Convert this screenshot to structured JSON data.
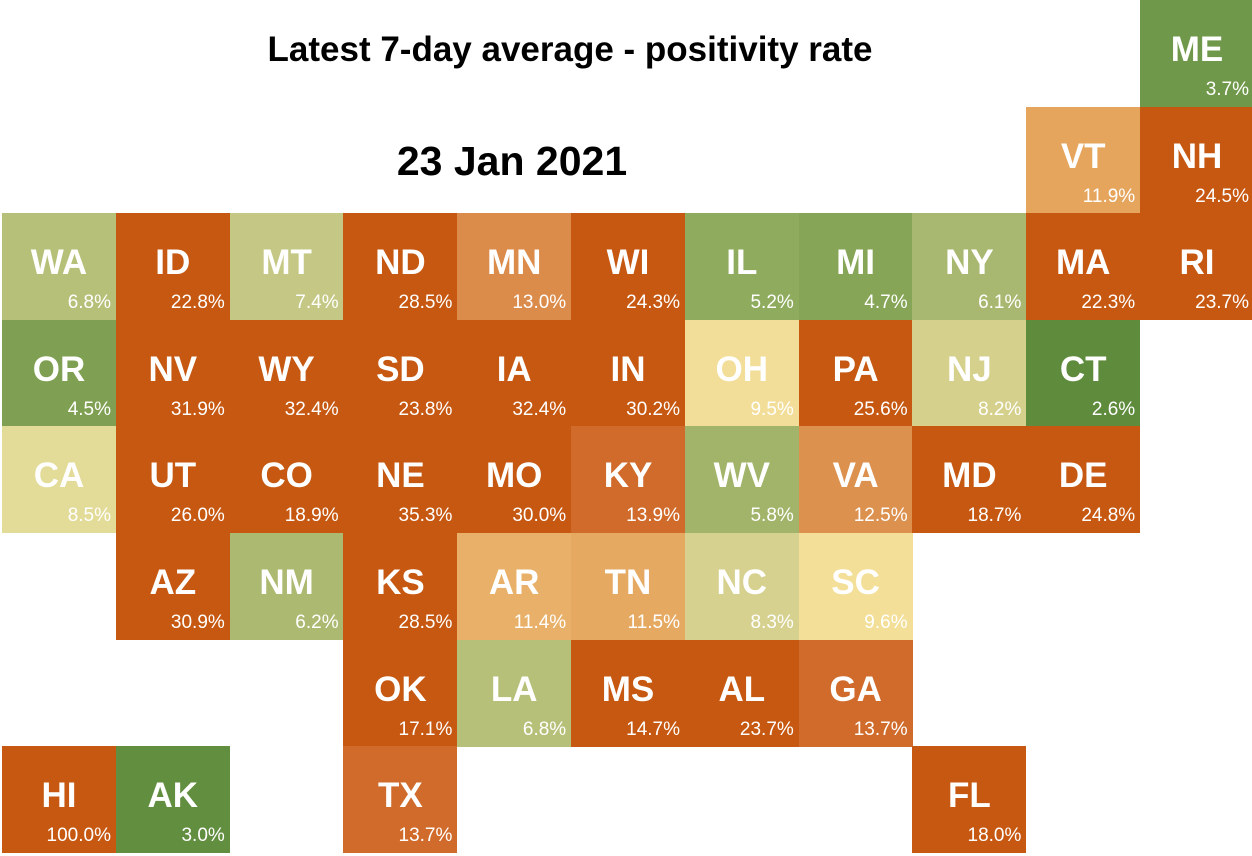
{
  "title": "Latest 7-day average - positivity rate",
  "date": "23 Jan 2021",
  "chart_data": {
    "type": "heatmap",
    "title": "Latest 7-day average - positivity rate",
    "subtitle": "23 Jan 2021",
    "columns": 11,
    "rows": 8,
    "tiles": [
      {
        "state": "ME",
        "value": "3.7%",
        "row": 0,
        "col": 10,
        "color": "#70984a"
      },
      {
        "state": "VT",
        "value": "11.9%",
        "row": 1,
        "col": 9,
        "color": "#e6a55c"
      },
      {
        "state": "NH",
        "value": "24.5%",
        "row": 1,
        "col": 10,
        "color": "#c65811"
      },
      {
        "state": "WA",
        "value": "6.8%",
        "row": 2,
        "col": 0,
        "color": "#b7c078"
      },
      {
        "state": "ID",
        "value": "22.8%",
        "row": 2,
        "col": 1,
        "color": "#c65811"
      },
      {
        "state": "MT",
        "value": "7.4%",
        "row": 2,
        "col": 2,
        "color": "#c5c884"
      },
      {
        "state": "ND",
        "value": "28.5%",
        "row": 2,
        "col": 3,
        "color": "#c65811"
      },
      {
        "state": "MN",
        "value": "13.0%",
        "row": 2,
        "col": 4,
        "color": "#db8b4a"
      },
      {
        "state": "WI",
        "value": "24.3%",
        "row": 2,
        "col": 5,
        "color": "#c65811"
      },
      {
        "state": "IL",
        "value": "5.2%",
        "row": 2,
        "col": 6,
        "color": "#8fab5e"
      },
      {
        "state": "MI",
        "value": "4.7%",
        "row": 2,
        "col": 7,
        "color": "#86a556"
      },
      {
        "state": "NY",
        "value": "6.1%",
        "row": 2,
        "col": 8,
        "color": "#a9b870"
      },
      {
        "state": "MA",
        "value": "22.3%",
        "row": 2,
        "col": 9,
        "color": "#c65811"
      },
      {
        "state": "RI",
        "value": "23.7%",
        "row": 2,
        "col": 10,
        "color": "#c65811"
      },
      {
        "state": "OR",
        "value": "4.5%",
        "row": 3,
        "col": 0,
        "color": "#7fa052"
      },
      {
        "state": "NV",
        "value": "31.9%",
        "row": 3,
        "col": 1,
        "color": "#c65811"
      },
      {
        "state": "WY",
        "value": "32.4%",
        "row": 3,
        "col": 2,
        "color": "#c65811"
      },
      {
        "state": "SD",
        "value": "23.8%",
        "row": 3,
        "col": 3,
        "color": "#c65811"
      },
      {
        "state": "IA",
        "value": "32.4%",
        "row": 3,
        "col": 4,
        "color": "#c65811"
      },
      {
        "state": "IN",
        "value": "30.2%",
        "row": 3,
        "col": 5,
        "color": "#c65811"
      },
      {
        "state": "OH",
        "value": "9.5%",
        "row": 3,
        "col": 6,
        "color": "#f2de98"
      },
      {
        "state": "PA",
        "value": "25.6%",
        "row": 3,
        "col": 7,
        "color": "#c65811"
      },
      {
        "state": "NJ",
        "value": "8.2%",
        "row": 3,
        "col": 8,
        "color": "#d5d08c"
      },
      {
        "state": "CT",
        "value": "2.6%",
        "row": 3,
        "col": 9,
        "color": "#5e8b3c"
      },
      {
        "state": "CA",
        "value": "8.5%",
        "row": 4,
        "col": 0,
        "color": "#e3db98"
      },
      {
        "state": "UT",
        "value": "26.0%",
        "row": 4,
        "col": 1,
        "color": "#c65811"
      },
      {
        "state": "CO",
        "value": "18.9%",
        "row": 4,
        "col": 2,
        "color": "#c65811"
      },
      {
        "state": "NE",
        "value": "35.3%",
        "row": 4,
        "col": 3,
        "color": "#c65811"
      },
      {
        "state": "MO",
        "value": "30.0%",
        "row": 4,
        "col": 4,
        "color": "#c65811"
      },
      {
        "state": "KY",
        "value": "13.9%",
        "row": 4,
        "col": 5,
        "color": "#d06b2b"
      },
      {
        "state": "WV",
        "value": "5.8%",
        "row": 4,
        "col": 6,
        "color": "#a2b46a"
      },
      {
        "state": "VA",
        "value": "12.5%",
        "row": 4,
        "col": 7,
        "color": "#dd914f"
      },
      {
        "state": "MD",
        "value": "18.7%",
        "row": 4,
        "col": 8,
        "color": "#c65811"
      },
      {
        "state": "DE",
        "value": "24.8%",
        "row": 4,
        "col": 9,
        "color": "#c65811"
      },
      {
        "state": "AZ",
        "value": "30.9%",
        "row": 5,
        "col": 1,
        "color": "#c65811"
      },
      {
        "state": "NM",
        "value": "6.2%",
        "row": 5,
        "col": 2,
        "color": "#abb971"
      },
      {
        "state": "KS",
        "value": "28.5%",
        "row": 5,
        "col": 3,
        "color": "#c65811"
      },
      {
        "state": "AR",
        "value": "11.4%",
        "row": 5,
        "col": 4,
        "color": "#e8b068"
      },
      {
        "state": "TN",
        "value": "11.5%",
        "row": 5,
        "col": 5,
        "color": "#e6a962"
      },
      {
        "state": "NC",
        "value": "8.3%",
        "row": 5,
        "col": 6,
        "color": "#d6d18f"
      },
      {
        "state": "SC",
        "value": "9.6%",
        "row": 5,
        "col": 7,
        "color": "#f3df98"
      },
      {
        "state": "OK",
        "value": "17.1%",
        "row": 6,
        "col": 3,
        "color": "#c65811"
      },
      {
        "state": "LA",
        "value": "6.8%",
        "row": 6,
        "col": 4,
        "color": "#b7c078"
      },
      {
        "state": "MS",
        "value": "14.7%",
        "row": 6,
        "col": 5,
        "color": "#c65811"
      },
      {
        "state": "AL",
        "value": "23.7%",
        "row": 6,
        "col": 6,
        "color": "#c65811"
      },
      {
        "state": "GA",
        "value": "13.7%",
        "row": 6,
        "col": 7,
        "color": "#d06b2b"
      },
      {
        "state": "HI",
        "value": "100.0%",
        "row": 7,
        "col": 0,
        "color": "#c65811"
      },
      {
        "state": "AK",
        "value": "3.0%",
        "row": 7,
        "col": 1,
        "color": "#628e40"
      },
      {
        "state": "TX",
        "value": "13.7%",
        "row": 7,
        "col": 3,
        "color": "#d06b2b"
      },
      {
        "state": "FL",
        "value": "18.0%",
        "row": 7,
        "col": 8,
        "color": "#c65811"
      }
    ]
  }
}
